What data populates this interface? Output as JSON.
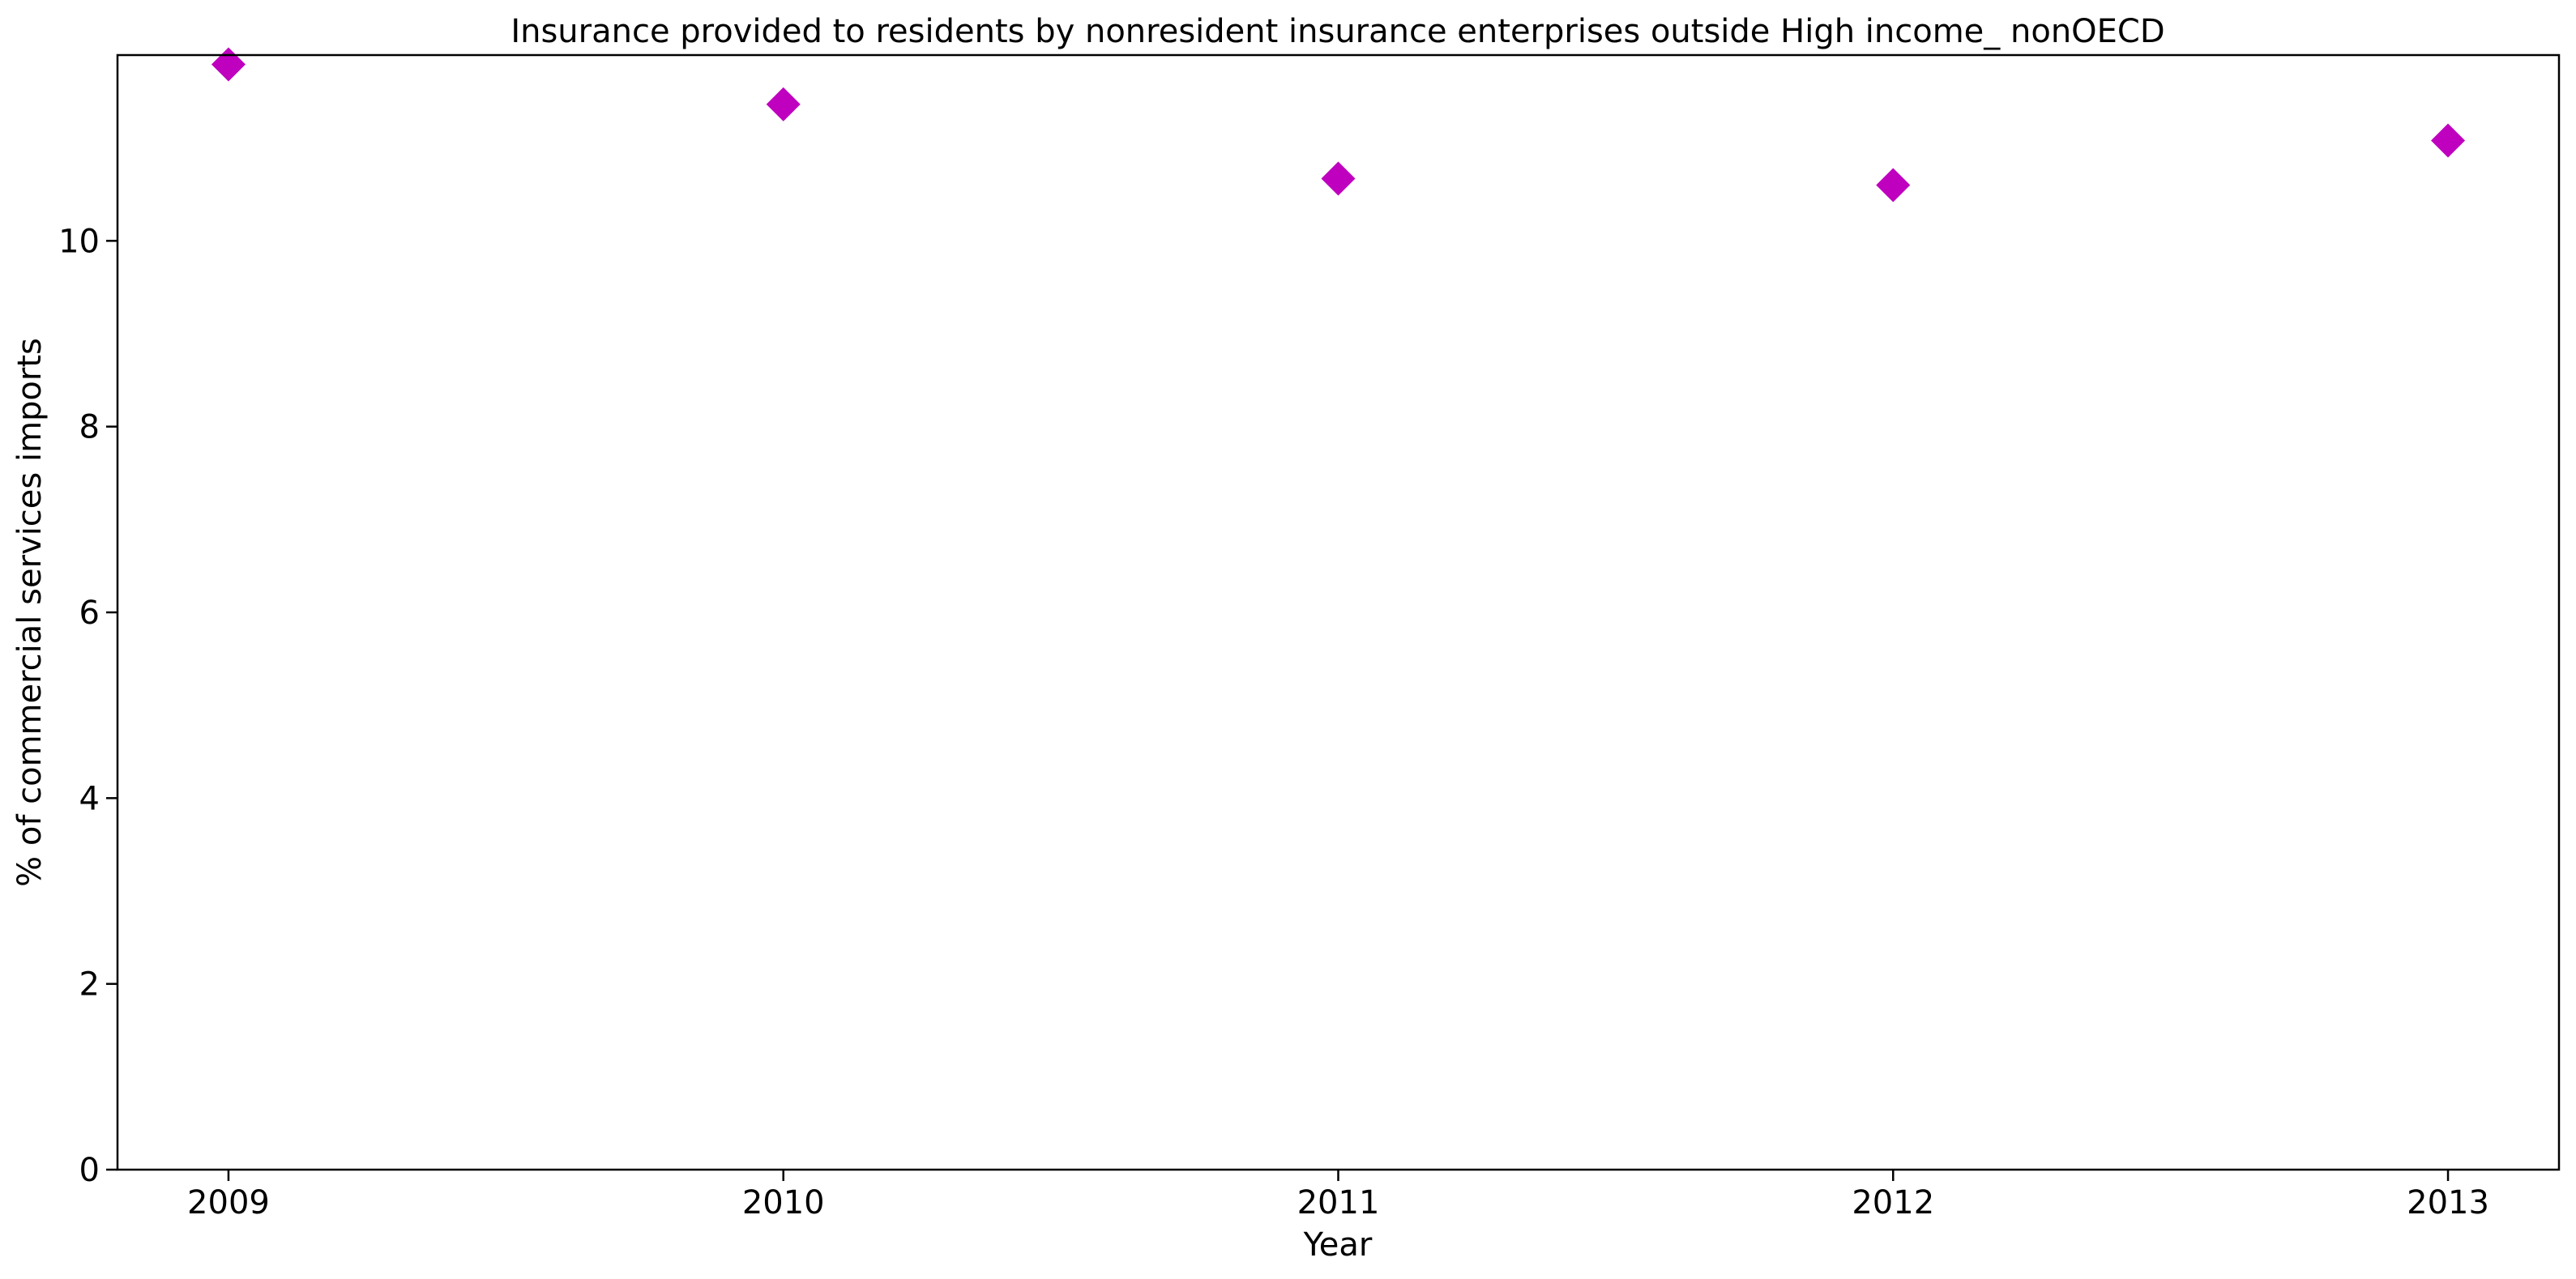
{
  "chart_data": {
    "type": "scatter",
    "title": "Insurance provided to residents by nonresident insurance enterprises outside High income_ nonOECD",
    "xlabel": "Year",
    "ylabel": "% of commercial services imports",
    "x_ticks": [
      "2009",
      "2010",
      "2011",
      "2012",
      "2013"
    ],
    "y_ticks": [
      0,
      2,
      4,
      6,
      8,
      10
    ],
    "ylim": [
      0,
      12
    ],
    "xlim": [
      2008.8,
      2013.2
    ],
    "grid": false,
    "legend": "none",
    "series": [
      {
        "marker": "diamond",
        "color": "#bf00bf",
        "points": [
          {
            "x": 2009,
            "y": 11.9
          },
          {
            "x": 2010,
            "y": 11.47
          },
          {
            "x": 2011,
            "y": 10.67
          },
          {
            "x": 2012,
            "y": 10.6
          },
          {
            "x": 2013,
            "y": 11.08
          }
        ]
      }
    ]
  }
}
